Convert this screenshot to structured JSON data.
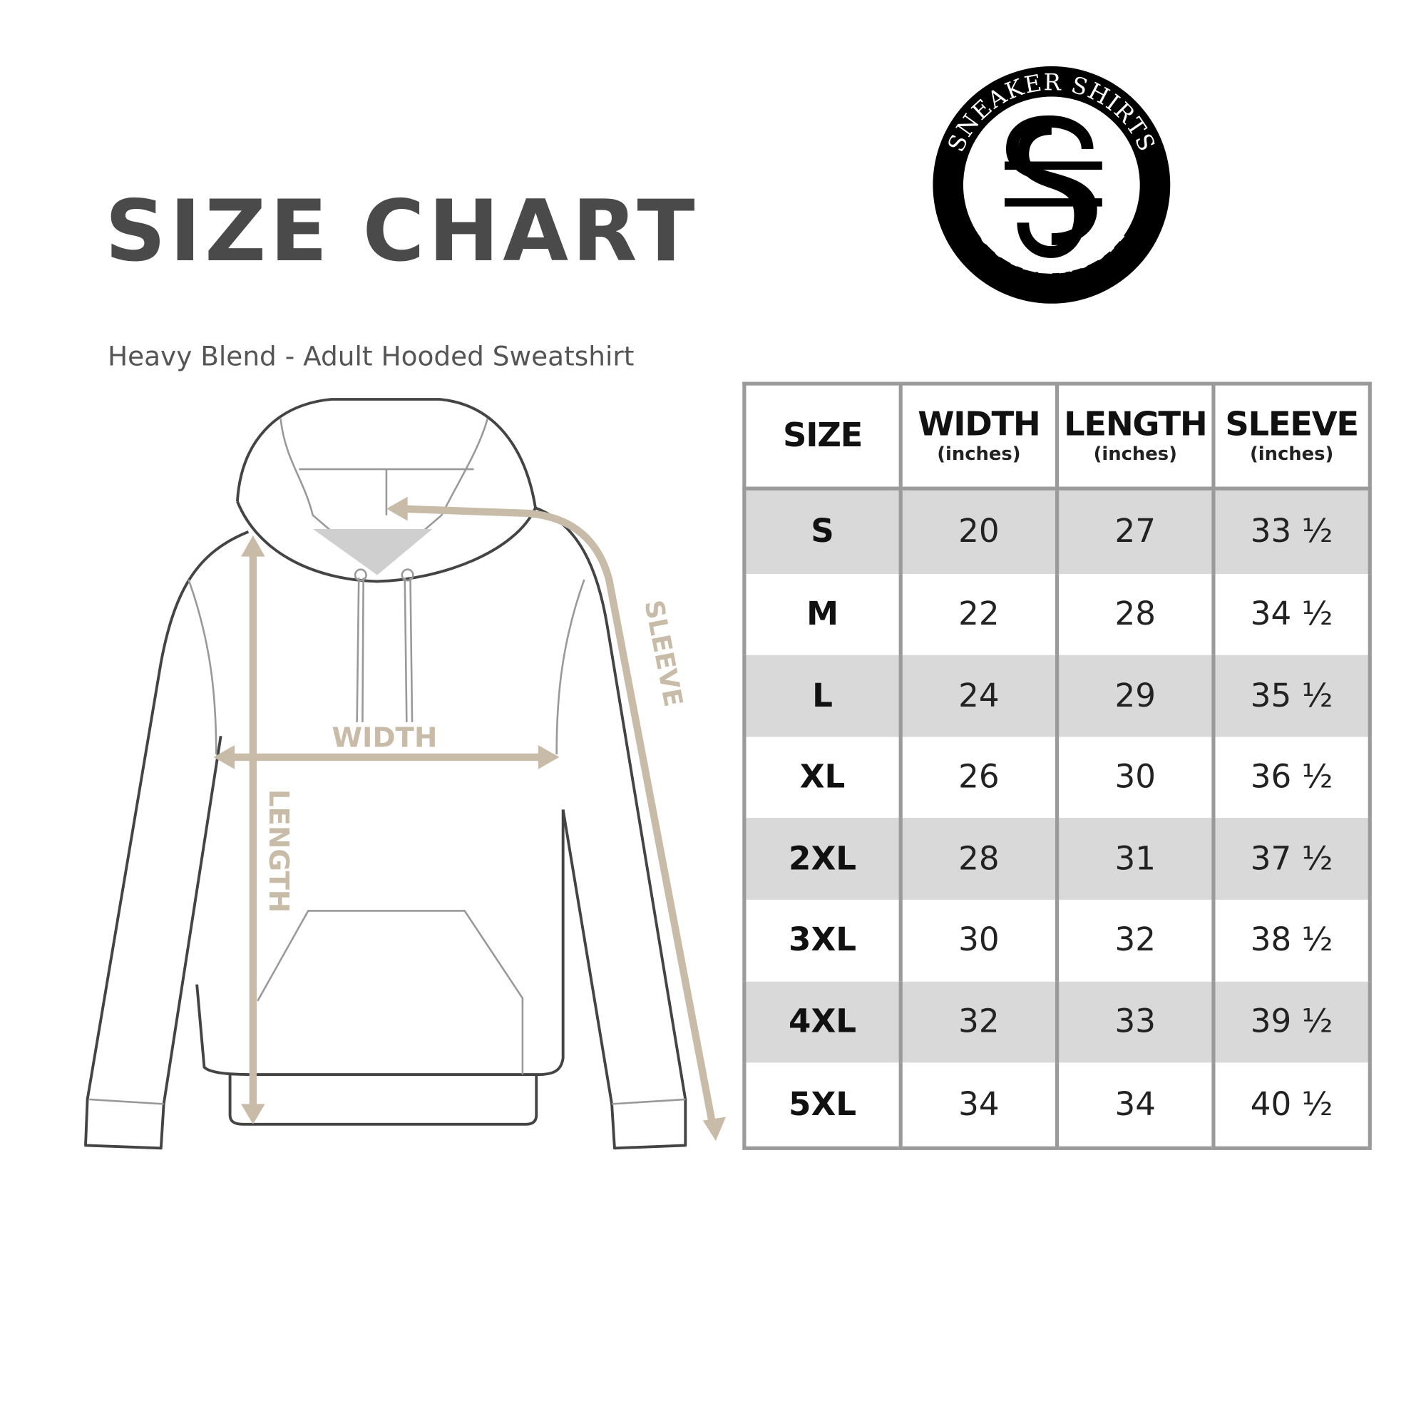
{
  "header": {
    "title_words": [
      "SIZE",
      "CHART"
    ],
    "subtitle": "Heavy Blend - Adult Hooded Sweatshirt"
  },
  "logo": {
    "top_text": "SNEAKER SHIRTS",
    "bottom_text": "OUTLET.COM",
    "monogram": "SS"
  },
  "diagram": {
    "labels": {
      "width": "WIDTH",
      "length": "LENGTH",
      "sleeve": "SLEEVE"
    },
    "arrow_color": "#c8bba7",
    "outline_color": "#444444"
  },
  "table": {
    "headers": [
      {
        "label": "SIZE",
        "unit": ""
      },
      {
        "label": "WIDTH",
        "unit": "(inches)"
      },
      {
        "label": "LENGTH",
        "unit": "(inches)"
      },
      {
        "label": "SLEEVE",
        "unit": "(inches)"
      }
    ],
    "rows": [
      [
        "S",
        "20",
        "27",
        "33 ½"
      ],
      [
        "M",
        "22",
        "28",
        "34 ½"
      ],
      [
        "L",
        "24",
        "29",
        "35 ½"
      ],
      [
        "XL",
        "26",
        "30",
        "36 ½"
      ],
      [
        "2XL",
        "28",
        "31",
        "37 ½"
      ],
      [
        "3XL",
        "30",
        "32",
        "38 ½"
      ],
      [
        "4XL",
        "32",
        "33",
        "39 ½"
      ],
      [
        "5XL",
        "34",
        "34",
        "40 ½"
      ]
    ],
    "shade_color": "#d9d9d9",
    "border_color": "#9a9a9a"
  }
}
